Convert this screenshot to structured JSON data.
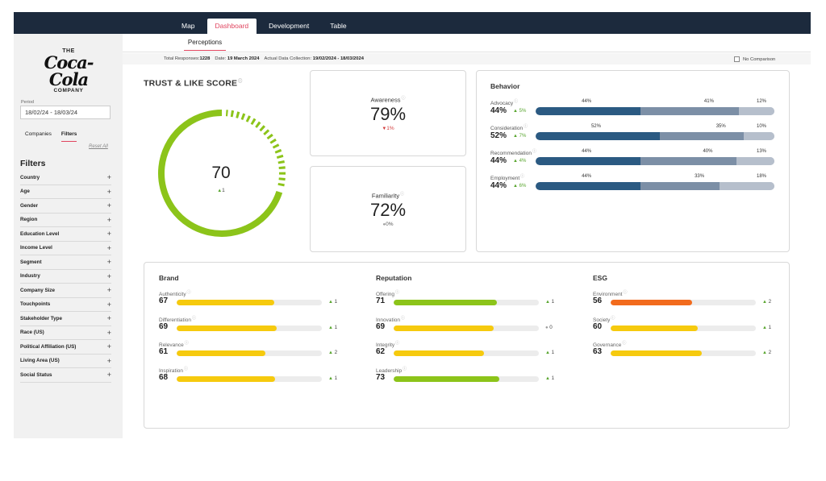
{
  "nav": {
    "tabs": [
      "Map",
      "Dashboard",
      "Development",
      "Table"
    ],
    "active": "Dashboard"
  },
  "logo": {
    "line1": "THE",
    "script": "Coca-Cola",
    "line3": "COMPANY"
  },
  "sidebar": {
    "period_label": "Period",
    "period_value": "18/02/24 - 18/03/24",
    "tabs": [
      "Companies",
      "Filters"
    ],
    "reset": "Reset All",
    "filters_title": "Filters",
    "filters": [
      "Country",
      "Age",
      "Gender",
      "Region",
      "Education Level",
      "Income Level",
      "Segment",
      "Industry",
      "Company Size",
      "Touchpoints",
      "Stakeholder Type",
      "Race (US)",
      "Political Affiliation (US)",
      "Living Area (US)",
      "Social Status"
    ],
    "plus": "+"
  },
  "subnav": {
    "tab": "Perceptions"
  },
  "info": {
    "responses_label": "Total Responses:",
    "responses_value": "1228",
    "date_label": "Date:",
    "date_value": "19 March 2024",
    "collection_label": "Actual Data Collection:",
    "collection_value": "19/02/2024 - 18/03/2024",
    "no_comparison": "No Comparison"
  },
  "trust": {
    "title": "TRUST & LIKE SCORE",
    "info": "ⓘ",
    "score": 70,
    "score_text": "70",
    "delta": "1",
    "max": 100
  },
  "awareness": {
    "label": "Awareness",
    "value": "79%",
    "delta": "1%",
    "direction": "down"
  },
  "familiarity": {
    "label": "Familiarity",
    "value": "72%",
    "delta": "0%",
    "direction": "flat"
  },
  "behavior": {
    "title": "Behavior",
    "rows": [
      {
        "label": "Advocacy",
        "pct": "44%",
        "delta": "5%",
        "segments": [
          44,
          41,
          12
        ],
        "seg_labels": [
          "44%",
          "41%",
          "12%"
        ]
      },
      {
        "label": "Consideration",
        "pct": "52%",
        "delta": "7%",
        "segments": [
          52,
          35,
          10
        ],
        "seg_labels": [
          "52%",
          "35%",
          "10%"
        ]
      },
      {
        "label": "Recommendation",
        "pct": "44%",
        "delta": "4%",
        "segments": [
          44,
          40,
          13
        ],
        "seg_labels": [
          "44%",
          "40%",
          "13%"
        ]
      },
      {
        "label": "Employment",
        "pct": "44%",
        "delta": "6%",
        "segments": [
          44,
          33,
          18
        ],
        "seg_labels": [
          "44%",
          "33%",
          "18%"
        ]
      }
    ]
  },
  "colors": {
    "green": "#8cc41a",
    "yellow": "#f6ca0e",
    "orange": "#f26b1d",
    "accent": "#e0455f"
  },
  "brand": {
    "title": "Brand",
    "items": [
      {
        "label": "Authenticity",
        "value": 67,
        "delta": "1",
        "dir": "up",
        "color": "yellow"
      },
      {
        "label": "Differentiation",
        "value": 69,
        "delta": "1",
        "dir": "up",
        "color": "yellow"
      },
      {
        "label": "Relevance",
        "value": 61,
        "delta": "2",
        "dir": "up",
        "color": "yellow"
      },
      {
        "label": "Inspiration",
        "value": 68,
        "delta": "1",
        "dir": "up",
        "color": "yellow"
      }
    ]
  },
  "reputation": {
    "title": "Reputation",
    "items": [
      {
        "label": "Offering",
        "value": 71,
        "delta": "1",
        "dir": "up",
        "color": "green"
      },
      {
        "label": "Innovation",
        "value": 69,
        "delta": "0",
        "dir": "flat",
        "color": "yellow"
      },
      {
        "label": "Integrity",
        "value": 62,
        "delta": "1",
        "dir": "up",
        "color": "yellow"
      },
      {
        "label": "Leadership",
        "value": 73,
        "delta": "1",
        "dir": "up",
        "color": "green"
      }
    ]
  },
  "esg": {
    "title": "ESG",
    "items": [
      {
        "label": "Environment",
        "value": 56,
        "delta": "2",
        "dir": "up",
        "color": "orange"
      },
      {
        "label": "Society",
        "value": 60,
        "delta": "1",
        "dir": "up",
        "color": "yellow"
      },
      {
        "label": "Governance",
        "value": 63,
        "delta": "2",
        "dir": "up",
        "color": "yellow"
      }
    ]
  }
}
